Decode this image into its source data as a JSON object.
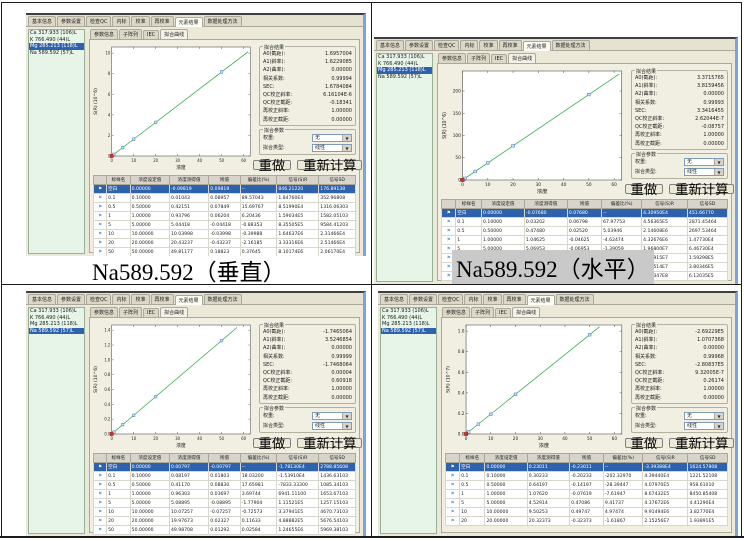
{
  "captions": {
    "left": "Na589.592（垂直）",
    "right": "Na589.592（水平）"
  },
  "colors": {
    "selection_blue": "#2f62ad",
    "line_green": "#3faf53",
    "point_blue": "#4d88c4",
    "point_fill": "#cfe3f5",
    "point_red": "#dd2b1e",
    "list_green": "#e7f4e8",
    "panel_gray": "#f1efe2",
    "header_gray": "#d8d4cc",
    "caption_highlight": "#c9c9c9",
    "window_edge_blue": "#7ba2e7"
  },
  "shared": {
    "main_tabs": [
      "基本信息",
      "参数设置",
      "检查QC",
      "内标",
      "校准",
      "再校准",
      "元素结果",
      "数据处理方法"
    ],
    "active_main_tab": "元素结果",
    "sub_tabs": [
      "参数信息",
      "子阵列",
      "IEC",
      "拟合曲线"
    ],
    "active_sub_tab": "拟合曲线",
    "elements": [
      "Ca 317.933 (106)L",
      "K 766.490 (44)L",
      "Mg 285.213 (118)L",
      "Na 589.592 (57)L"
    ],
    "fit_results_title": "拟合结果",
    "fit_params_title": "拟合参数",
    "stats_labels": [
      "A0(截距):",
      "A1(斜率):",
      "A2(曲率):",
      "相关系数:",
      "SEC:",
      "QC校正斜率:",
      "QC校正截距:",
      "再校正斜率:",
      "再校正截距:"
    ],
    "weight_label": "权重:",
    "weight_value": "无",
    "fit_type_label": "拟合类型:",
    "fit_type_value": "线性",
    "buttons": {
      "redo": "重做",
      "recalc": "重新计算"
    },
    "table_headers": [
      "",
      "标样名",
      "浓度设定值",
      "浓度测得值",
      "残值",
      "偏差比(%)",
      "信号(S)R",
      "信号SD"
    ],
    "plot_xlabel": "浓度",
    "plot_xticks": [
      0,
      10,
      20,
      30,
      40,
      50,
      60
    ],
    "plot_xmax": 63,
    "standard_concentrations": [
      0.1,
      0.5,
      1,
      5,
      10,
      20,
      50
    ]
  },
  "quadrants": [
    {
      "id": "top-left",
      "selected_element": 2,
      "stats": [
        "1.6957004",
        "1.6229085",
        "0.00000",
        "0.99994",
        "1.6784084",
        "6.16104E-6",
        "-0.18341",
        "1.00000",
        "0.00000"
      ],
      "plot": {
        "ylabel": "S(R) (10^6)",
        "yticks": [
          "0",
          "2",
          "4",
          "6",
          "8",
          "10"
        ],
        "ymax": 10.6,
        "slope": 0.1635,
        "line_x": 62
      },
      "rows": [
        [
          "空白",
          "0.00000",
          "-0.09819",
          "0.09819",
          "--",
          "846.21220",
          "176.89138"
        ],
        [
          "0.1",
          "0.10000",
          "0.01043",
          "0.08957",
          "89.57043",
          "1.84760E4",
          "352.96808"
        ],
        [
          "0.5",
          "0.50000",
          "0.42151",
          "0.07849",
          "15.69767",
          "8.51990E4",
          "1316.06303"
        ],
        [
          "1",
          "1.00000",
          "0.93796",
          "0.06204",
          "6.20436",
          "1.59034E5",
          "1582.05103"
        ],
        [
          "5",
          "5.00000",
          "5.04418",
          "-0.04418",
          "-0.88353",
          "8.35505E5",
          "9584.41203"
        ],
        [
          "10",
          "10.00000",
          "10.03998",
          "-0.03998",
          "-0.39988",
          "1.64637E6",
          "2.31466E4"
        ],
        [
          "20",
          "20.00000",
          "20.43237",
          "-0.43237",
          "-2.16185",
          "3.33316E6",
          "2.51466E4"
        ],
        [
          "50",
          "50.00000",
          "49.81177",
          "0.18823",
          "0.37645",
          "8.10174E6",
          "2.06170E4"
        ]
      ]
    },
    {
      "id": "top-right",
      "selected_element": 2,
      "stats": [
        "3.3715765",
        "3.8159456",
        "0.00000",
        "0.99993",
        "3.3416455",
        "2.62044E-7",
        "-0.08757",
        "1.00000",
        "0.00000"
      ],
      "plot": {
        "ylabel": "S(R) (10^6)",
        "yticks": [
          "0",
          "50",
          "100",
          "150",
          "200"
        ],
        "ymax": 245,
        "slope": 3.84,
        "line_x": 62
      },
      "rows": [
        [
          "空白",
          "0.00000",
          "-0.07680",
          "0.07680",
          "--",
          "4.30950E4",
          "451.66770"
        ],
        [
          "0.1",
          "0.10000",
          "0.03202",
          "0.06798",
          "67.97753",
          "4.56365E5",
          "2871.45464"
        ],
        [
          "0.5",
          "0.50000",
          "0.47480",
          "0.02520",
          "5.03946",
          "2.14608E6",
          "2697.53464"
        ],
        [
          "1",
          "1.00000",
          "1.04625",
          "-0.04625",
          "-4.62474",
          "4.32676E6",
          "1.47730E4"
        ],
        [
          "5",
          "5.00000",
          "5.06953",
          "-0.06953",
          "-1.39059",
          "1.96800E7",
          "6.46730E4"
        ],
        [
          "10",
          "10.00000",
          "10.06987",
          "-0.06987",
          "-0.69871",
          "3.86915E7",
          "1.59298E5"
        ],
        [
          "20",
          "20.00000",
          "19.86657",
          "0.13343",
          "0.66716",
          "7.63514E7",
          "3.80346E5"
        ],
        [
          "50",
          "50.00000",
          "50.04189",
          "-0.04189",
          "-0.08378",
          "1.92347E8",
          "6.12035E5"
        ]
      ]
    },
    {
      "id": "bottom-left",
      "selected_element": 3,
      "stats": [
        "-1.7465064",
        "3.5246854",
        "0.00000",
        "0.99999",
        "-1.7468064",
        "0.00004",
        "0.60918",
        "1.00000",
        "0.00000"
      ],
      "plot": {
        "ylabel": "S(R) (10^6)",
        "yticks": [
          "0.0",
          "0.2",
          "0.4",
          "0.6",
          "0.8",
          "1.0",
          "1.2",
          "1.4"
        ],
        "ymax": 1.47,
        "slope": 0.0252,
        "line_x": 57
      },
      "rows": [
        [
          "空白",
          "0.00000",
          "0.00797",
          "-0.00797",
          "--",
          "-1.78130E4",
          "2788.85608"
        ],
        [
          "0.1",
          "0.10000",
          "0.08197",
          "0.01803",
          "18.03200",
          "-1.53910E4",
          "1436.63103"
        ],
        [
          "0.5",
          "0.50000",
          "0.41170",
          "0.08830",
          "17.65981",
          "-7833.33300",
          "1085.34103"
        ],
        [
          "1",
          "1.00000",
          "0.96303",
          "0.03697",
          "3.69744",
          "6941.11100",
          "1653.67103"
        ],
        [
          "5",
          "5.00000",
          "5.08895",
          "-0.08895",
          "-1.77904",
          "1.11521E5",
          "1257.15103"
        ],
        [
          "10",
          "10.00000",
          "10.07257",
          "-0.07257",
          "-0.72573",
          "3.37941E5",
          "4670.73103"
        ],
        [
          "20",
          "20.00000",
          "19.97673",
          "0.02327",
          "0.11633",
          "4.88882E5",
          "5676.54103"
        ],
        [
          "50",
          "50.00000",
          "49.98708",
          "0.01292",
          "0.02584",
          "1.24655E6",
          "5969.38103"
        ]
      ]
    },
    {
      "id": "bottom-right",
      "selected_element": 3,
      "stats": [
        "-2.69229E5",
        "1.0707368",
        "0.00000",
        "0.99968",
        "-2.80837E5",
        "9.32005E-7",
        "0.26174",
        "1.00000",
        "0.00000"
      ],
      "plot": {
        "ylabel": "S(R) (10^7)",
        "yticks": [
          "0.0",
          "0.2",
          "0.4",
          "0.6",
          "0.8",
          "1.0"
        ],
        "ymax": 1.06,
        "slope": 0.0193,
        "line_x": 54
      },
      "rows": [
        [
          "空白",
          "0.00000",
          "0.23011",
          "-0.23011",
          "--",
          "-3.39388E4",
          "1624.57808"
        ],
        [
          "0.1",
          "0.10000",
          "0.30233",
          "-0.20233",
          "-202.32970",
          "4.39440E4",
          "1221.52108"
        ],
        [
          "0.5",
          "0.50000",
          "0.64197",
          "-0.14197",
          "-28.39447",
          "4.07970E5",
          "958.61010"
        ],
        [
          "1",
          "1.00000",
          "1.07620",
          "-0.07619",
          "-7.61947",
          "8.67432E5",
          "8450.85408"
        ],
        [
          "5",
          "5.00000",
          "4.52914",
          "0.47086",
          "9.41737",
          "4.37672E6",
          "4.41290E4"
        ],
        [
          "10",
          "10.00000",
          "9.50253",
          "0.49747",
          "4.97474",
          "9.91494E6",
          "3.82770E4"
        ],
        [
          "20",
          "20.00000",
          "20.32373",
          "-0.32373",
          "-1.61867",
          "2.15256E7",
          "1.93891E5"
        ]
      ]
    }
  ]
}
